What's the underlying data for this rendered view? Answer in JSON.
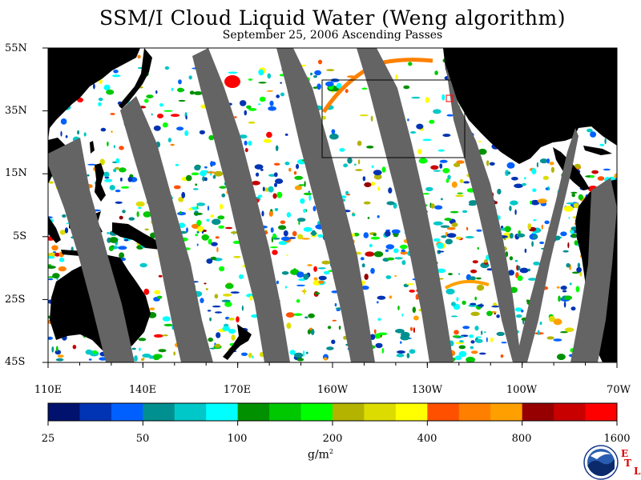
{
  "title": "SSM/I Cloud Liquid Water (Weng algorithm)",
  "subtitle": "September 25, 2006  Ascending Passes",
  "latitude_labels": [
    "55N",
    "35N",
    "15N",
    "5S",
    "25S",
    "45S"
  ],
  "longitude_labels": [
    "110E",
    "140E",
    "170E",
    "160W",
    "130W",
    "100W",
    "70W"
  ],
  "colorbar": {
    "tick_labels": [
      "25",
      "50",
      "100",
      "200",
      "400",
      "800",
      "1600"
    ],
    "units": "g/m",
    "units_exponent": "2",
    "colors": [
      "#00126e",
      "#0034b4",
      "#0060ff",
      "#009090",
      "#00c8c8",
      "#00ffff",
      "#009000",
      "#00c800",
      "#00ff00",
      "#b4b400",
      "#dcdc00",
      "#ffff00",
      "#ff5000",
      "#ff8000",
      "#ffa000",
      "#960000",
      "#c80000",
      "#ff0000"
    ]
  },
  "legend_mark": {
    "text_1": "E",
    "text_2": "T",
    "text_3": "L"
  },
  "colors": {
    "land": "#000000",
    "no_data_swath": "#646464",
    "ocean_clear": "#ffffff"
  }
}
